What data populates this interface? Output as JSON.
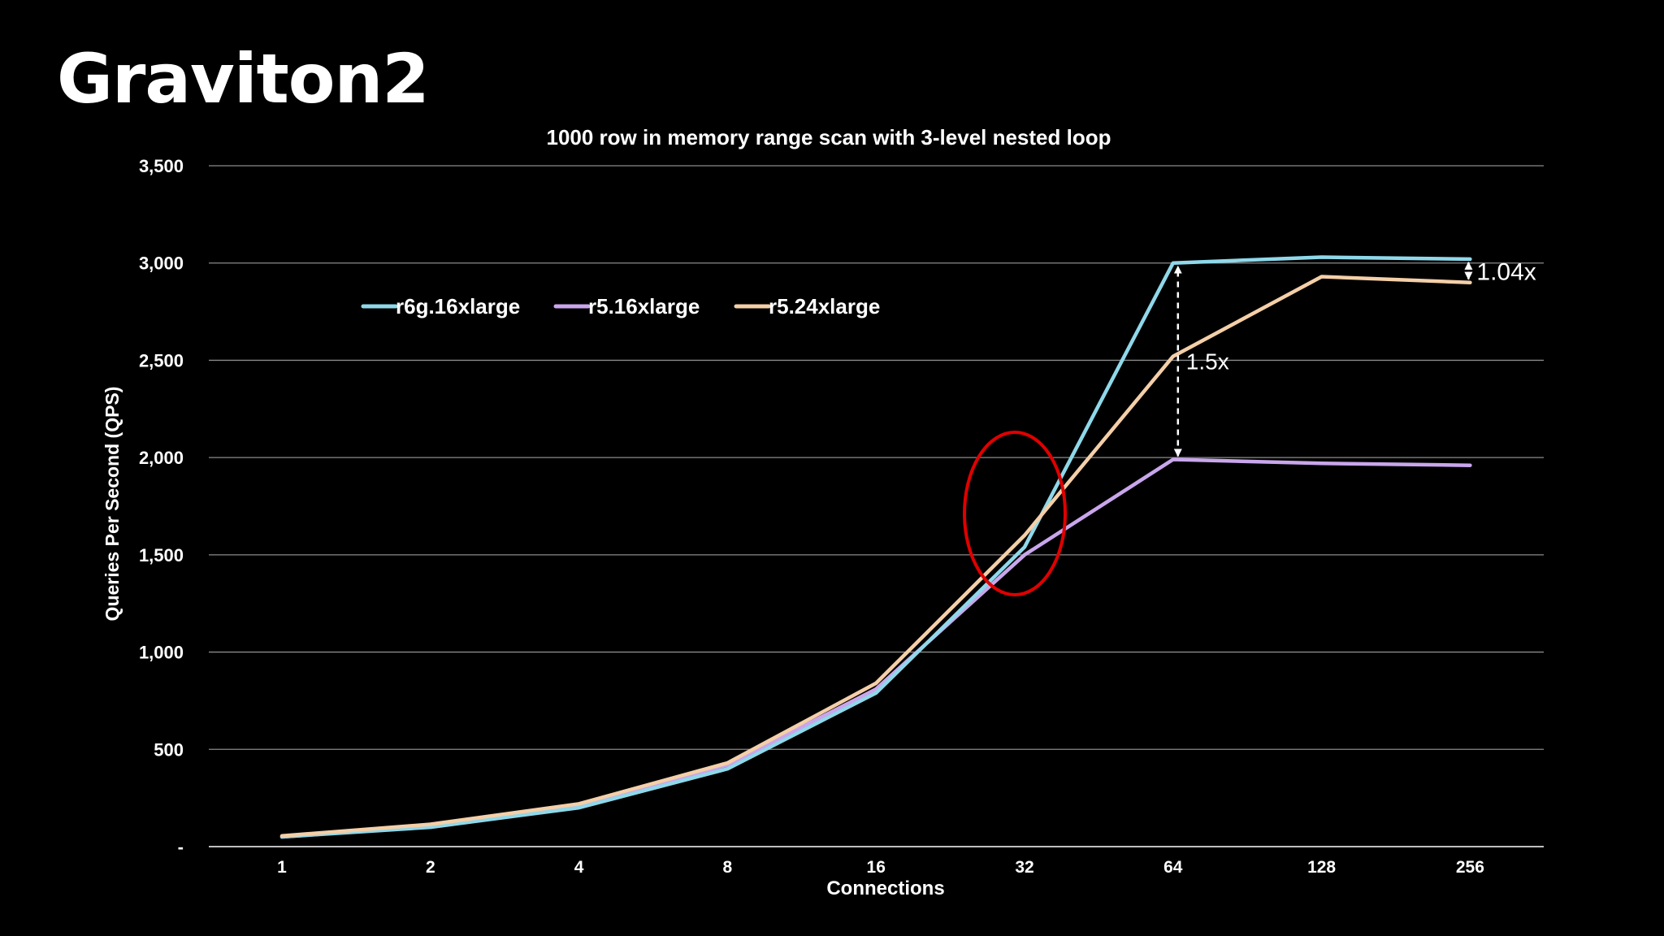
{
  "slide": {
    "title": "Graviton2"
  },
  "chart_data": {
    "type": "line",
    "title": "1000 row in memory range scan with 3-level nested loop",
    "xlabel": "Connections",
    "ylabel": "Queries Per Second (QPS)",
    "categories": [
      "1",
      "2",
      "4",
      "8",
      "16",
      "32",
      "64",
      "128",
      "256"
    ],
    "ylim": [
      0,
      3500
    ],
    "yticks": [
      0,
      500,
      1000,
      1500,
      2000,
      2500,
      3000,
      3500
    ],
    "ytick_labels": [
      "-",
      "500",
      "1,000",
      "1,500",
      "2,000",
      "2,500",
      "3,000",
      "3,500"
    ],
    "grid": true,
    "legend_position": "top-left",
    "series": [
      {
        "name": "r6g.16xlarge",
        "color": "#8fd8ea",
        "values": [
          50,
          100,
          200,
          400,
          790,
          1540,
          3000,
          3030,
          3020
        ]
      },
      {
        "name": "r5.16xlarge",
        "color": "#c9a6ec",
        "values": [
          50,
          105,
          210,
          420,
          810,
          1500,
          1990,
          1970,
          1960
        ]
      },
      {
        "name": "r5.24xlarge",
        "color": "#f4cfa8",
        "values": [
          55,
          115,
          220,
          430,
          840,
          1600,
          2520,
          2930,
          2900
        ]
      }
    ],
    "annotations": [
      {
        "text": "1.5x",
        "category": "64",
        "from": 1990,
        "to": 3000
      },
      {
        "text": "1.04x",
        "category": "256",
        "from": 2900,
        "to": 3020
      }
    ],
    "highlight": {
      "shape": "ellipse",
      "category": "32",
      "color": "#e00000"
    }
  }
}
